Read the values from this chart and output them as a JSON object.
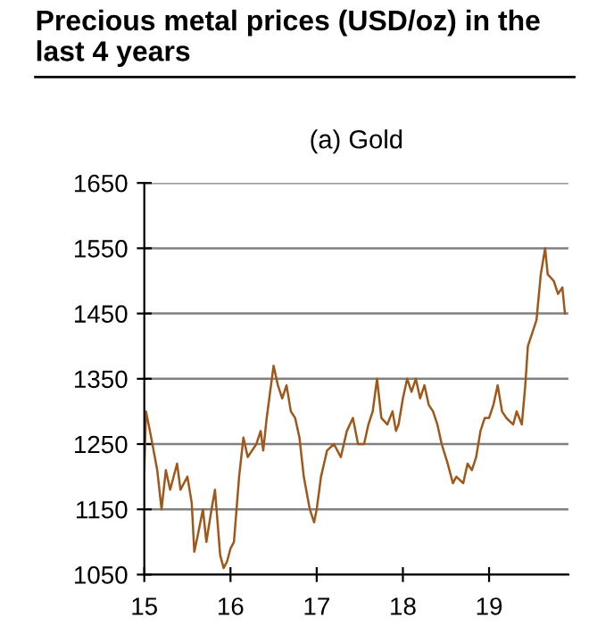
{
  "chart_data": {
    "type": "line",
    "title": "Precious metal prices (USD/oz) in the last 4 years",
    "subtitle": "(a) Gold",
    "x": [
      15.0,
      15.02,
      15.08,
      15.15,
      15.2,
      15.25,
      15.3,
      15.38,
      15.42,
      15.5,
      15.55,
      15.58,
      15.62,
      15.68,
      15.72,
      15.78,
      15.82,
      15.88,
      15.92,
      15.96,
      16.0,
      16.04,
      16.1,
      16.15,
      16.2,
      16.3,
      16.35,
      16.38,
      16.42,
      16.45,
      16.5,
      16.55,
      16.6,
      16.65,
      16.7,
      16.75,
      16.8,
      16.85,
      16.92,
      16.97,
      17.0,
      17.05,
      17.12,
      17.2,
      17.28,
      17.35,
      17.42,
      17.48,
      17.55,
      17.6,
      17.65,
      17.7,
      17.75,
      17.82,
      17.88,
      17.92,
      17.95,
      18.0,
      18.05,
      18.1,
      18.15,
      18.2,
      18.25,
      18.3,
      18.35,
      18.4,
      18.45,
      18.52,
      18.58,
      18.62,
      18.7,
      18.75,
      18.8,
      18.85,
      18.9,
      18.95,
      19.0,
      19.05,
      19.1,
      19.15,
      19.2,
      19.28,
      19.32,
      19.38,
      19.42,
      19.45,
      19.5,
      19.55,
      19.6,
      19.65,
      19.68,
      19.75,
      19.8,
      19.85,
      19.88
    ],
    "series": [
      {
        "color": "#a0581a",
        "values": [
          1210,
          1300,
          1260,
          1210,
          1150,
          1210,
          1180,
          1220,
          1180,
          1200,
          1160,
          1085,
          1110,
          1150,
          1100,
          1150,
          1180,
          1080,
          1060,
          1070,
          1090,
          1100,
          1200,
          1260,
          1230,
          1250,
          1270,
          1240,
          1290,
          1320,
          1370,
          1340,
          1320,
          1340,
          1300,
          1290,
          1260,
          1200,
          1150,
          1130,
          1150,
          1200,
          1240,
          1250,
          1230,
          1270,
          1290,
          1250,
          1250,
          1280,
          1300,
          1350,
          1290,
          1280,
          1300,
          1270,
          1280,
          1320,
          1350,
          1330,
          1350,
          1320,
          1340,
          1310,
          1300,
          1280,
          1250,
          1220,
          1190,
          1200,
          1190,
          1220,
          1210,
          1230,
          1270,
          1290,
          1290,
          1310,
          1340,
          1300,
          1290,
          1280,
          1300,
          1280,
          1340,
          1400,
          1420,
          1440,
          1510,
          1550,
          1510,
          1500,
          1480,
          1490,
          1450
        ]
      }
    ],
    "xlim": [
      15,
      19.92
    ],
    "xticks": [
      15,
      16,
      17,
      18,
      19
    ],
    "ylim": [
      1050,
      1650
    ],
    "yticks": [
      1050,
      1150,
      1250,
      1350,
      1450,
      1550,
      1650
    ],
    "grid": "y",
    "legend": false,
    "line_style": "solid",
    "marker": "none"
  }
}
